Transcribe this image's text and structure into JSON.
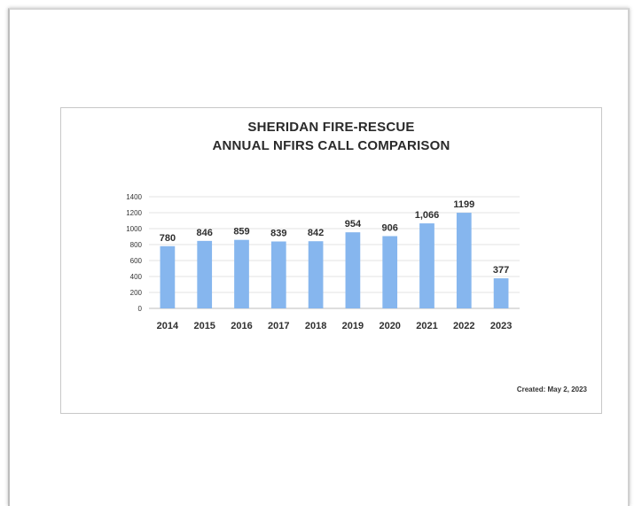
{
  "chart_data": {
    "type": "bar",
    "title": "SHERIDAN FIRE-RESCUE",
    "subtitle": "ANNUAL NFIRS CALL COMPARISON",
    "categories": [
      "2014",
      "2015",
      "2016",
      "2017",
      "2018",
      "2019",
      "2020",
      "2021",
      "2022",
      "2023"
    ],
    "values": [
      780,
      846,
      859,
      839,
      842,
      954,
      906,
      1066,
      1199,
      377
    ],
    "data_labels": [
      "780",
      "846",
      "859",
      "839",
      "842",
      "954",
      "906",
      "1,066",
      "1199",
      "377"
    ],
    "yticks": [
      "0",
      "200",
      "400",
      "600",
      "800",
      "1000",
      "1200",
      "1400"
    ],
    "ylim": [
      0,
      1400
    ],
    "xlabel": "",
    "ylabel": "",
    "grid": true,
    "legend": "none",
    "bar_color": "#86b6ee",
    "grid_color": "#e3e3e3"
  },
  "footer": {
    "created": "Created:  May 2, 2023"
  }
}
